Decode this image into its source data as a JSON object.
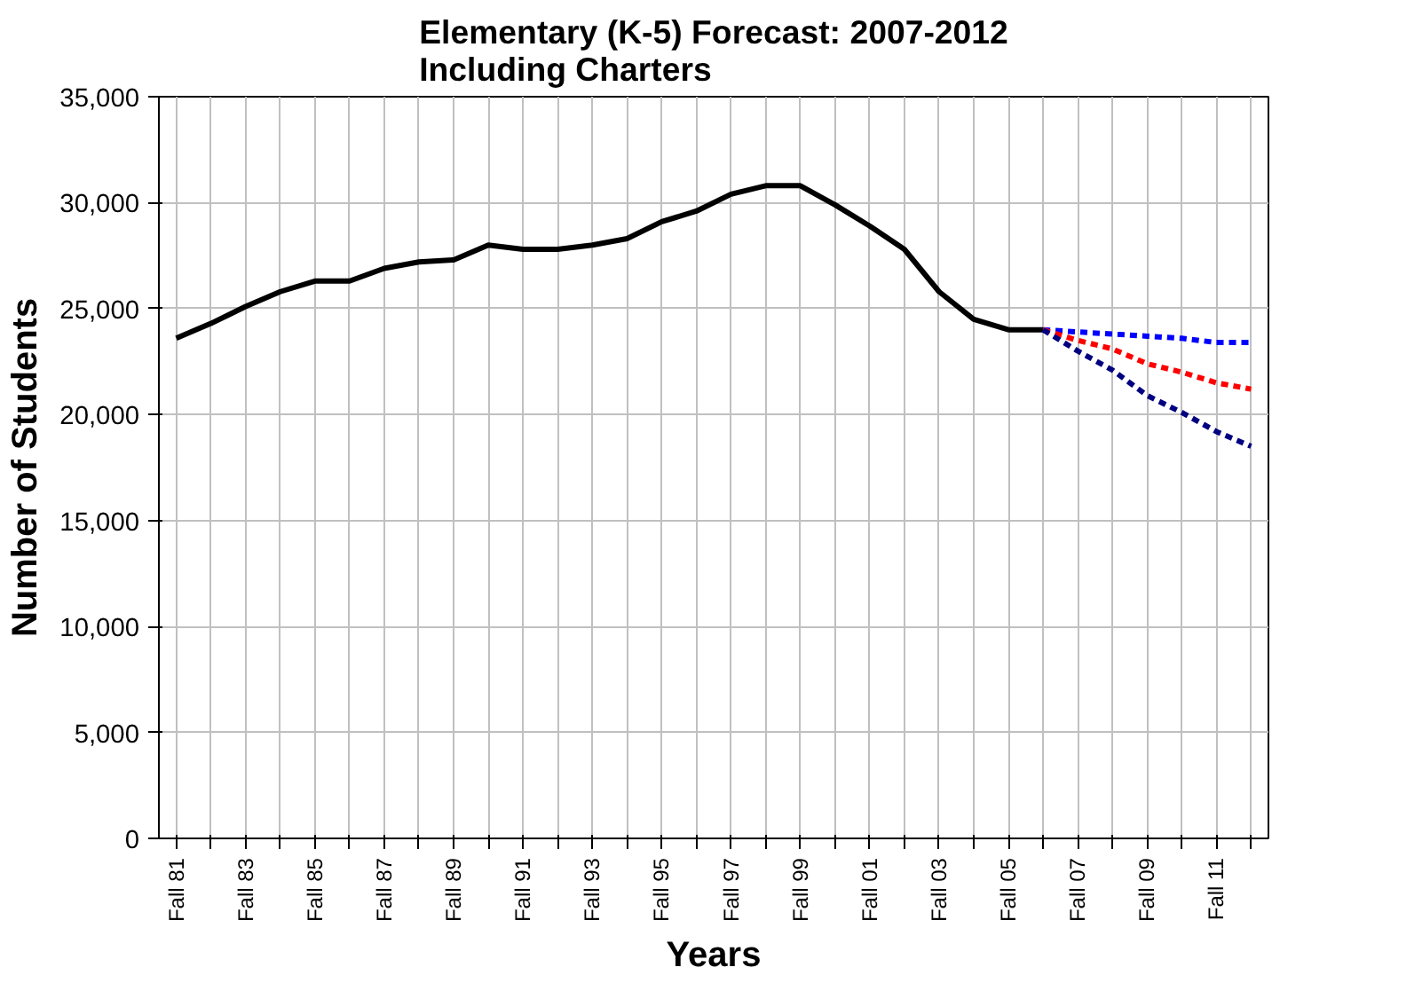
{
  "chart_data": {
    "type": "line",
    "title": "Elementary (K-5) Forecast: 2007-2012\nIncluding Charters",
    "xlabel": "Years",
    "ylabel": "Number of Students",
    "categories": [
      "Fall 81",
      null,
      "Fall 83",
      null,
      "Fall 85",
      null,
      "Fall 87",
      null,
      "Fall 89",
      null,
      "Fall 91",
      null,
      "Fall 93",
      null,
      "Fall 95",
      null,
      "Fall 97",
      null,
      "Fall 99",
      null,
      "Fall 01",
      null,
      "Fall 03",
      null,
      "Fall 05",
      null,
      "Fall 07",
      null,
      "Fall 09",
      null,
      "Fall 11",
      null
    ],
    "series": [
      {
        "color": "#000000",
        "line_style": "solid",
        "values": [
          23600,
          24300,
          25100,
          25800,
          26300,
          26300,
          26900,
          27200,
          27300,
          28000,
          27800,
          27800,
          28000,
          28300,
          29100,
          29600,
          30400,
          30800,
          30800,
          29900,
          28900,
          27800,
          25800,
          24500,
          24000,
          24000,
          null,
          null,
          null,
          null,
          null,
          null
        ]
      },
      {
        "color": "#0000ff",
        "line_style": "dashed",
        "values": [
          null,
          null,
          null,
          null,
          null,
          null,
          null,
          null,
          null,
          null,
          null,
          null,
          null,
          null,
          null,
          null,
          null,
          null,
          null,
          null,
          null,
          null,
          null,
          null,
          null,
          24000,
          23900,
          23800,
          23700,
          23600,
          23400,
          23400
        ]
      },
      {
        "color": "#ff0000",
        "line_style": "dashed",
        "values": [
          null,
          null,
          null,
          null,
          null,
          null,
          null,
          null,
          null,
          null,
          null,
          null,
          null,
          null,
          null,
          null,
          null,
          null,
          null,
          null,
          null,
          null,
          null,
          null,
          null,
          24000,
          23500,
          23100,
          22400,
          22000,
          21500,
          21200
        ]
      },
      {
        "color": "#000080",
        "line_style": "dashed",
        "values": [
          null,
          null,
          null,
          null,
          null,
          null,
          null,
          null,
          null,
          null,
          null,
          null,
          null,
          null,
          null,
          null,
          null,
          null,
          null,
          null,
          null,
          null,
          null,
          null,
          null,
          24000,
          23000,
          22100,
          20900,
          20100,
          19200,
          18500
        ]
      }
    ],
    "ylim": [
      0,
      35000
    ],
    "yticks": [
      {
        "value": 0,
        "label": "0"
      },
      {
        "value": 5000,
        "label": "5,000"
      },
      {
        "value": 10000,
        "label": "10,000"
      },
      {
        "value": 15000,
        "label": "15,000"
      },
      {
        "value": 20000,
        "label": "20,000"
      },
      {
        "value": 25000,
        "label": "25,000"
      },
      {
        "value": 30000,
        "label": "30,000"
      },
      {
        "value": 35000,
        "label": "35,000"
      }
    ],
    "grid": true,
    "marker": "none"
  }
}
